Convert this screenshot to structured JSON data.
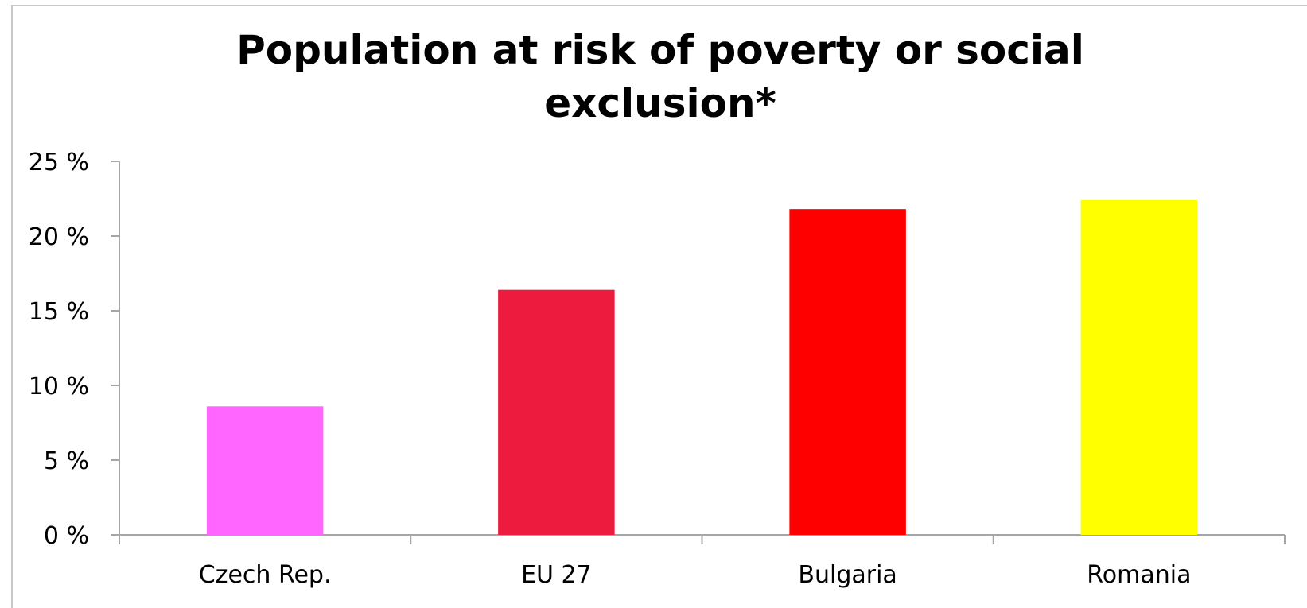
{
  "chart_data": {
    "type": "bar",
    "title": [
      "Population at risk of poverty or social",
      "exclusion*"
    ],
    "xlabel": "",
    "ylabel": "",
    "categories": [
      "Czech Rep.",
      "EU 27",
      "Bulgaria",
      "Romania"
    ],
    "values": [
      8.6,
      16.4,
      21.8,
      22.4
    ],
    "colors": [
      "#ff66ff",
      "#ed1c3f",
      "#ff0000",
      "#ffff00"
    ],
    "ylim": [
      0,
      25
    ],
    "yticks": [
      0,
      5,
      10,
      15,
      20,
      25
    ],
    "ytick_labels": [
      "0 %",
      "5 %",
      "10 %",
      "15 %",
      "20 %",
      "25 %"
    ],
    "grid": false,
    "legend": "none"
  }
}
